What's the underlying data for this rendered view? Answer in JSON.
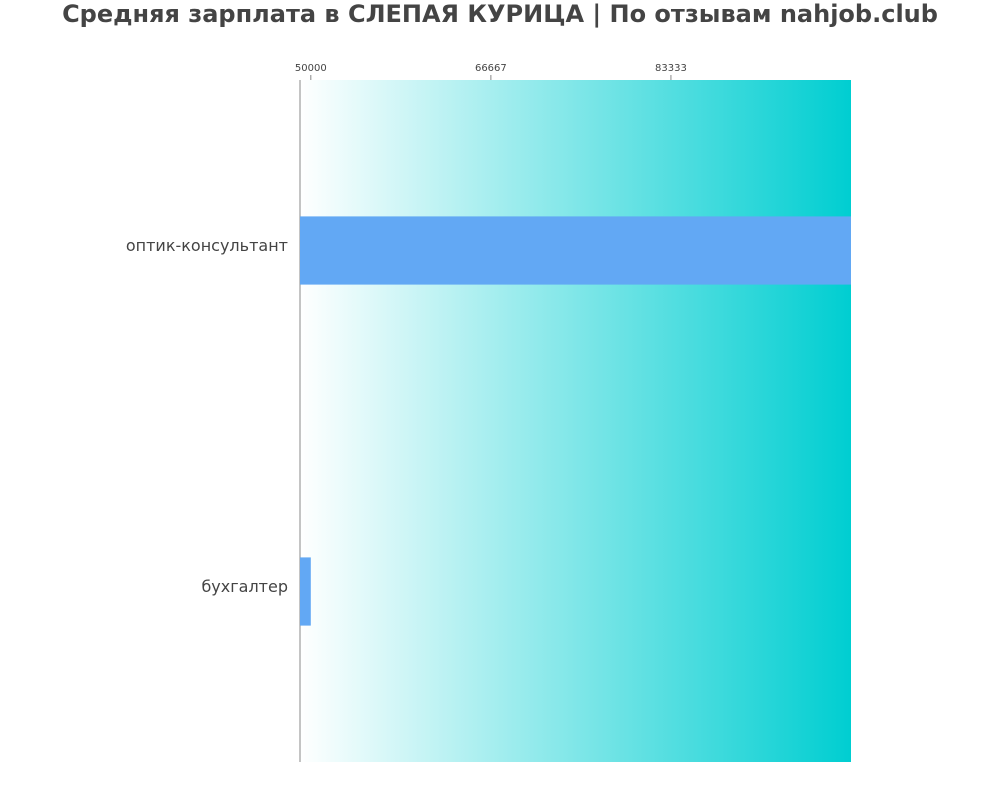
{
  "chart_data": {
    "type": "barh",
    "title": "Средняя зарплата в СЛЕПАЯ КУРИЦА | По отзывам nahjob.club",
    "categories": [
      "оптик-консультант",
      "бухгалтер"
    ],
    "values": [
      100000,
      50000
    ],
    "color": "#62a8f4",
    "xlim": [
      49000,
      100000
    ],
    "xticks": [
      50000,
      66667,
      83333
    ]
  }
}
